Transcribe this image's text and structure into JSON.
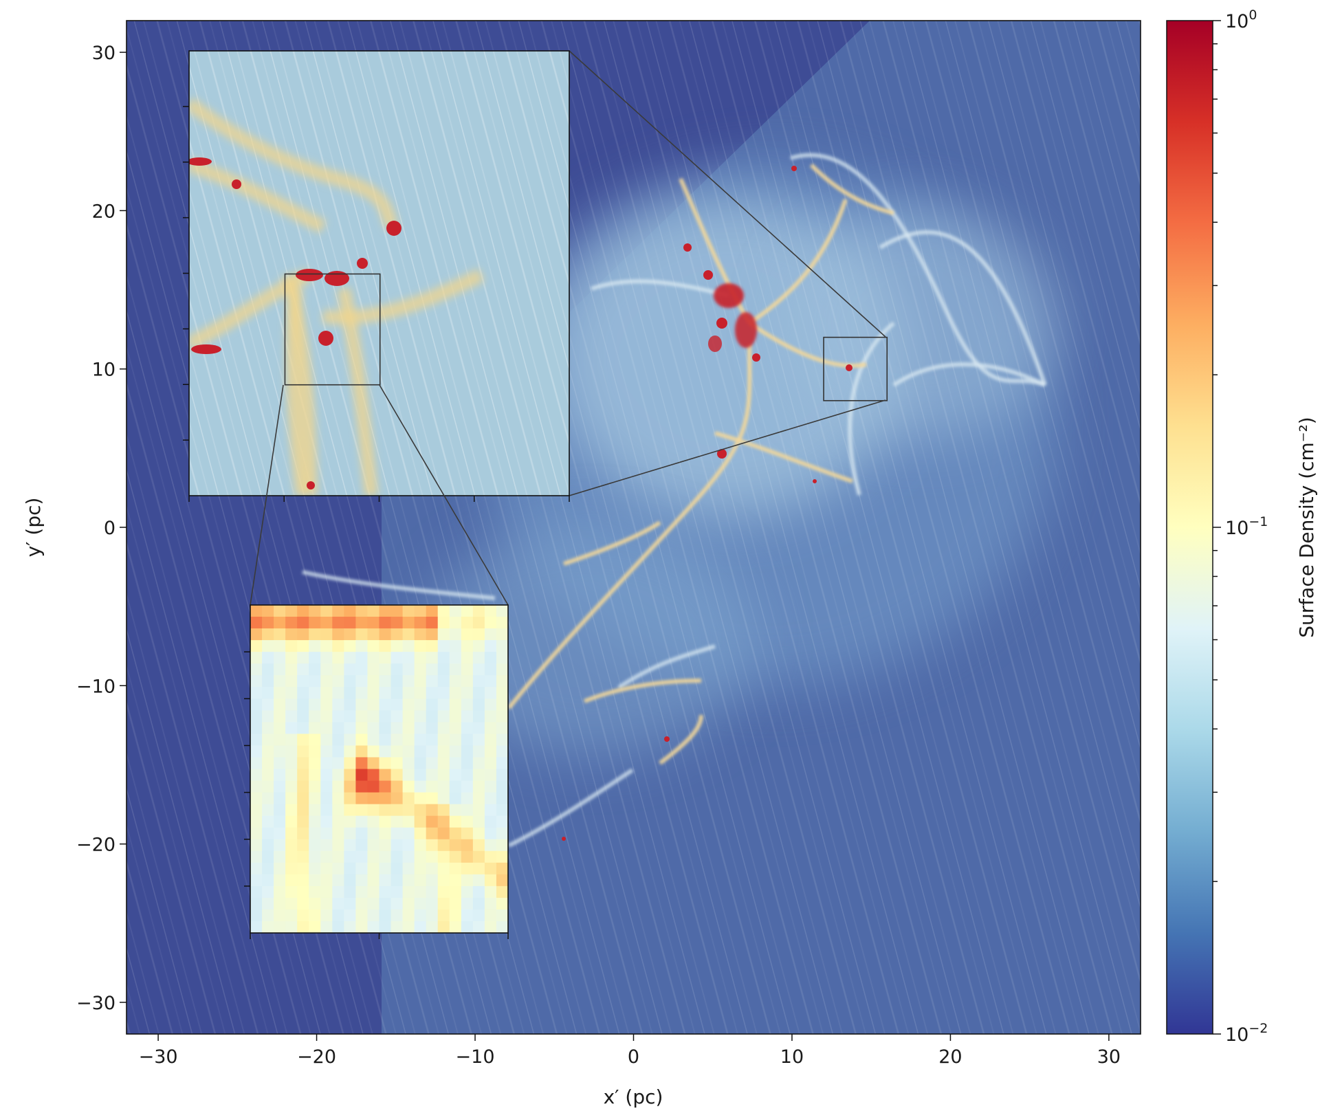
{
  "chart_data": {
    "type": "heatmap",
    "title": "",
    "xlabel": "x′ (pc)",
    "ylabel": "y′ (pc)",
    "xlim": [
      -32,
      32
    ],
    "ylim": [
      -32,
      32
    ],
    "xticks": [
      -30,
      -20,
      -10,
      0,
      10,
      20,
      30
    ],
    "yticks": [
      -30,
      -20,
      -10,
      0,
      10,
      20,
      30
    ],
    "xtick_labels": [
      "−30",
      "−20",
      "−10",
      "0",
      "10",
      "20",
      "30"
    ],
    "ytick_labels": [
      "−30",
      "−20",
      "−10",
      "0",
      "10",
      "20",
      "30"
    ],
    "grid": false,
    "colormap": "RdYlBu_r",
    "colorbar": {
      "label": "Surface Density (cm⁻²)",
      "scale": "log",
      "range": [
        0.01,
        1
      ],
      "major_labels": [
        {
          "value": 1,
          "base": "10",
          "exp": "0"
        },
        {
          "value": 0.1,
          "base": "10",
          "exp": "−1"
        },
        {
          "value": 0.01,
          "base": "10",
          "exp": "−2"
        }
      ],
      "colors": [
        "#313695",
        "#4575b4",
        "#74add1",
        "#abd9e9",
        "#e0f3f8",
        "#ffffbf",
        "#fee090",
        "#fdae61",
        "#f46d43",
        "#d73027",
        "#a50026"
      ]
    },
    "background_colors": {
      "outer": "#3e4c95",
      "cloud": "#5b80b8",
      "filament": "#f3dc9c",
      "core": "#c8202b"
    },
    "zoom_region_1": {
      "x_range": [
        12,
        16
      ],
      "y_range": [
        8,
        12
      ]
    },
    "inset_1": {
      "x_range": [
        -28,
        -4
      ],
      "y_range": [
        2,
        30
      ]
    },
    "zoom_region_2": {
      "x_range": [
        -22,
        -16
      ],
      "y_range": [
        9,
        16
      ]
    },
    "inset_2": {
      "x_range": [
        -24,
        -8
      ],
      "y_range": [
        -26,
        -6.5
      ]
    }
  }
}
